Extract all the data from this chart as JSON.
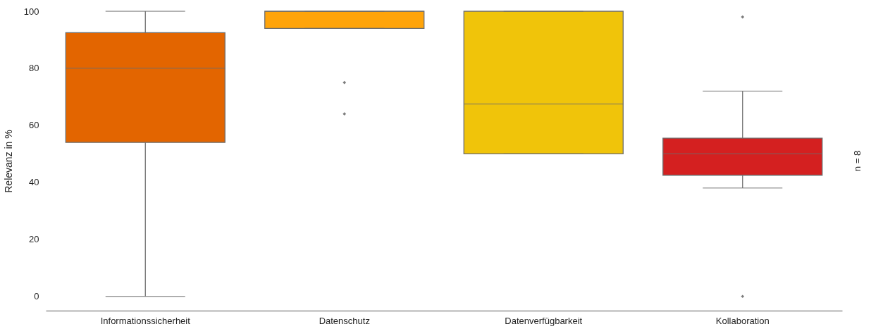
{
  "chart_data": {
    "type": "box",
    "ylabel": "Relevanz in %",
    "categories": [
      "Informationssicherheit",
      "Datenschutz",
      "Datenverfügbarkeit",
      "Kollaboration"
    ],
    "colors": [
      "#e36500",
      "#ffa40a",
      "#f0c40a",
      "#d42020"
    ],
    "boxes": [
      {
        "low": 0,
        "q1": 54,
        "median": 80,
        "q3": 92.5,
        "high": 100
      },
      {
        "low": 94,
        "q1": 94,
        "median": 100,
        "q3": 100,
        "high": 100,
        "outliers": [
          75,
          64
        ]
      },
      {
        "low": 50,
        "q1": 50,
        "median": 67.5,
        "q3": 100,
        "high": 100
      },
      {
        "low": 38,
        "q1": 42.5,
        "median": 50,
        "q3": 55.5,
        "high": 72,
        "outliers": [
          98,
          0
        ]
      }
    ],
    "ylim": [
      -5,
      100
    ],
    "yticks": [
      0,
      20,
      40,
      60,
      80,
      100
    ],
    "grid": false,
    "marker": "diamond",
    "annotations": [
      "n = 8"
    ]
  }
}
